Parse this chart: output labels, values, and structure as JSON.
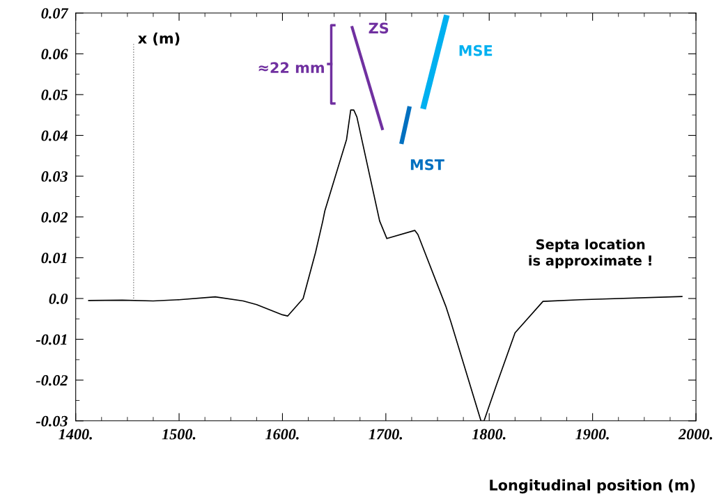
{
  "chart_data": {
    "type": "line",
    "xlabel": "Longitudinal position (m)",
    "ylabel": "x (m)",
    "xlim": [
      1400,
      2000
    ],
    "ylim": [
      -0.03,
      0.07
    ],
    "xticks": [
      {
        "value": 1400,
        "label": "1400."
      },
      {
        "value": 1500,
        "label": "1500."
      },
      {
        "value": 1600,
        "label": "1600."
      },
      {
        "value": 1700,
        "label": "1700."
      },
      {
        "value": 1800,
        "label": "1800."
      },
      {
        "value": 1900,
        "label": "1900."
      },
      {
        "value": 2000,
        "label": "2000."
      }
    ],
    "yticks": [
      {
        "value": -0.03,
        "label": "-0.03"
      },
      {
        "value": -0.02,
        "label": "-0.02"
      },
      {
        "value": -0.01,
        "label": "-0.01"
      },
      {
        "value": 0.0,
        "label": "0.0"
      },
      {
        "value": 0.01,
        "label": "0.01"
      },
      {
        "value": 0.02,
        "label": "0.02"
      },
      {
        "value": 0.03,
        "label": "0.03"
      },
      {
        "value": 0.04,
        "label": "0.04"
      },
      {
        "value": 0.05,
        "label": "0.05"
      },
      {
        "value": 0.06,
        "label": "0.06"
      },
      {
        "value": 0.07,
        "label": "0.07"
      }
    ],
    "grid": false,
    "legend": false,
    "series": [
      {
        "color": "#000000",
        "x": [
          1412,
          1445,
          1475,
          1500,
          1535,
          1562,
          1575,
          1600,
          1605,
          1620,
          1632,
          1639,
          1641,
          1662,
          1666,
          1669,
          1672,
          1694,
          1701,
          1728,
          1731,
          1758,
          1763,
          1792,
          1795,
          1807,
          1825,
          1852,
          1888,
          1987
        ],
        "values": [
          -0.0005,
          -0.0004,
          -0.0006,
          -0.0003,
          0.0004,
          -0.0006,
          -0.0015,
          -0.004,
          -0.0043,
          0.0,
          0.0113,
          0.019,
          0.0215,
          0.039,
          0.0462,
          0.0462,
          0.0445,
          0.019,
          0.0147,
          0.0167,
          0.0157,
          -0.0019,
          -0.0058,
          -0.03,
          -0.03,
          -0.0212,
          -0.0084,
          -0.0007,
          -0.0003,
          0.0005
        ]
      },
      {
        "color": "#808080",
        "line_style": "dotted",
        "x": [
          1456,
          1456
        ],
        "values": [
          0.0,
          0.0625
        ]
      },
      {
        "name": "ZS",
        "color": "#7030a0",
        "x": [
          1667,
          1697
        ],
        "values": [
          0.0668,
          0.0413
        ]
      },
      {
        "name": "MST",
        "color": "#0070c0",
        "x": [
          1715,
          1723
        ],
        "values": [
          0.0379,
          0.0471
        ]
      },
      {
        "name": "MSE",
        "color": "#00b0f0",
        "x": [
          1736,
          1759
        ],
        "values": [
          0.0465,
          0.0695
        ]
      }
    ],
    "annotations": [
      "≈22 mm",
      "Septa location\nis approximate !"
    ]
  }
}
